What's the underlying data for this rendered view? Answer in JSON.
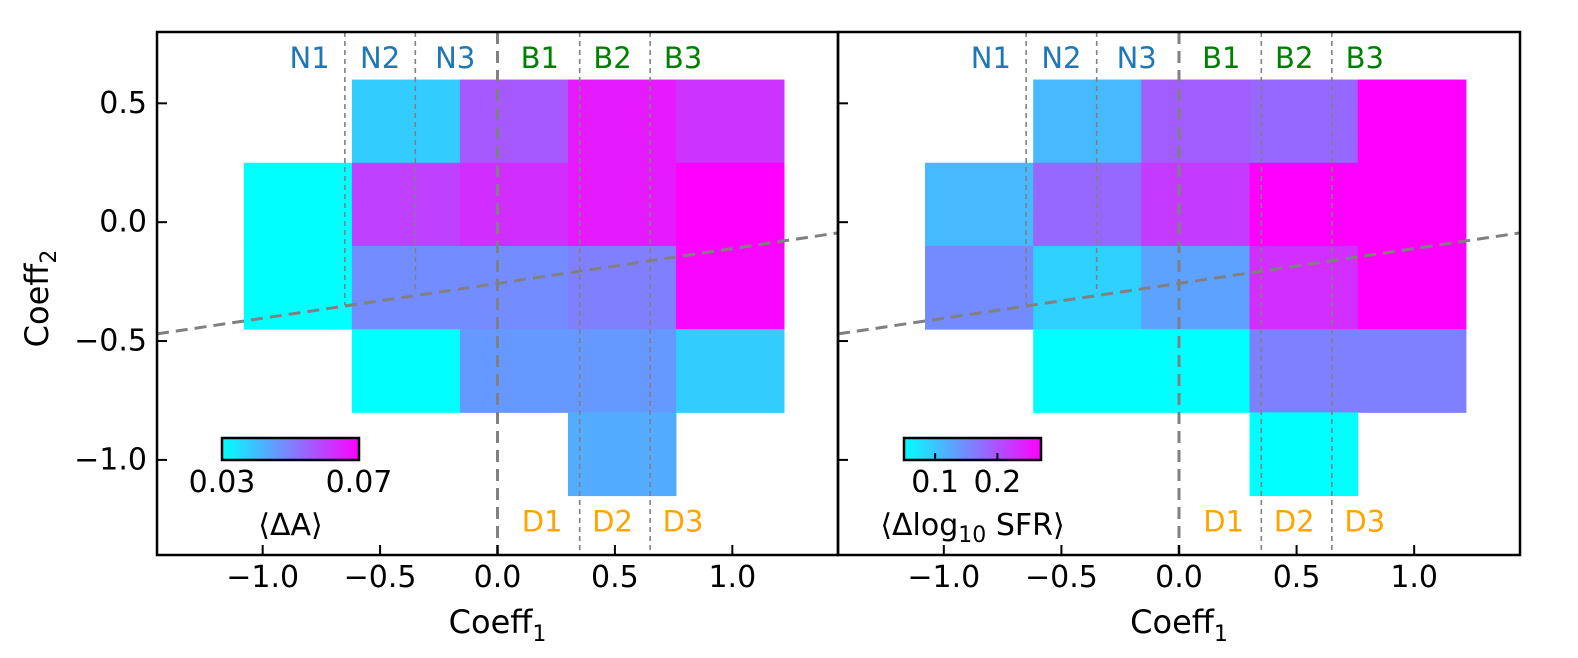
{
  "chart_data": [
    {
      "type": "heatmap",
      "panel": "left",
      "xlabel": "Coeff",
      "xlabel_sub": "1",
      "ylabel": "Coeff",
      "ylabel_sub": "2",
      "xlim": [
        -1.45,
        1.45
      ],
      "ylim": [
        -1.4,
        0.8
      ],
      "xticks": [
        -1.0,
        -0.5,
        0.0,
        0.5,
        1.0
      ],
      "xtick_labels": [
        "−1.0",
        "−0.5",
        "0.0",
        "0.5",
        "1.0"
      ],
      "yticks": [
        0.5,
        0.0,
        -0.5,
        -1.0
      ],
      "ytick_labels": [
        "0.5",
        "0.0",
        "−0.5",
        "−1.0"
      ],
      "colorbar": {
        "label": "⟨ΔA⟩",
        "range": [
          0.03,
          0.07
        ],
        "ticks": [
          0.03,
          0.07
        ],
        "tick_labels": [
          "0.03",
          "0.07"
        ],
        "colormap": "cool"
      },
      "cells": [
        {
          "x": [
            -0.62,
            -0.16
          ],
          "y": [
            0.25,
            0.6
          ],
          "value": 0.038
        },
        {
          "x": [
            -0.16,
            0.3
          ],
          "y": [
            0.25,
            0.6
          ],
          "value": 0.056
        },
        {
          "x": [
            0.3,
            0.76
          ],
          "y": [
            0.25,
            0.6
          ],
          "value": 0.066
        },
        {
          "x": [
            0.76,
            1.22
          ],
          "y": [
            0.25,
            0.6
          ],
          "value": 0.062
        },
        {
          "x": [
            -1.08,
            -0.62
          ],
          "y": [
            -0.1,
            0.25
          ],
          "value": 0.03
        },
        {
          "x": [
            -0.62,
            -0.16
          ],
          "y": [
            -0.1,
            0.25
          ],
          "value": 0.06
        },
        {
          "x": [
            -0.16,
            0.3
          ],
          "y": [
            -0.1,
            0.25
          ],
          "value": 0.063
        },
        {
          "x": [
            0.3,
            0.76
          ],
          "y": [
            -0.1,
            0.25
          ],
          "value": 0.066
        },
        {
          "x": [
            0.76,
            1.22
          ],
          "y": [
            -0.1,
            0.25
          ],
          "value": 0.07
        },
        {
          "x": [
            -1.08,
            -0.62
          ],
          "y": [
            -0.45,
            -0.1
          ],
          "value": 0.03
        },
        {
          "x": [
            -0.62,
            -0.16
          ],
          "y": [
            -0.45,
            -0.1
          ],
          "value": 0.048
        },
        {
          "x": [
            -0.16,
            0.3
          ],
          "y": [
            -0.45,
            -0.1
          ],
          "value": 0.048
        },
        {
          "x": [
            0.3,
            0.76
          ],
          "y": [
            -0.45,
            -0.1
          ],
          "value": 0.05
        },
        {
          "x": [
            0.76,
            1.22
          ],
          "y": [
            -0.45,
            -0.1
          ],
          "value": 0.069
        },
        {
          "x": [
            -0.62,
            -0.16
          ],
          "y": [
            -0.8,
            -0.45
          ],
          "value": 0.03
        },
        {
          "x": [
            -0.16,
            0.3
          ],
          "y": [
            -0.8,
            -0.45
          ],
          "value": 0.046
        },
        {
          "x": [
            0.3,
            0.76
          ],
          "y": [
            -0.8,
            -0.45
          ],
          "value": 0.046
        },
        {
          "x": [
            0.76,
            1.22
          ],
          "y": [
            -0.8,
            -0.45
          ],
          "value": 0.038
        },
        {
          "x": [
            0.3,
            0.76
          ],
          "y": [
            -1.15,
            -0.8
          ],
          "value": 0.043
        }
      ],
      "vertical_lines": [
        {
          "x": -0.65,
          "y_from": 0.8,
          "y_to": -0.35,
          "style": "thin"
        },
        {
          "x": -0.35,
          "y_from": 0.8,
          "y_to": -0.3,
          "style": "thin"
        },
        {
          "x": 0.0,
          "y_from": 0.8,
          "y_to": -1.4,
          "style": "thick"
        },
        {
          "x": 0.35,
          "y_from": 0.8,
          "y_to": -1.4,
          "style": "thin"
        },
        {
          "x": 0.65,
          "y_from": 0.8,
          "y_to": -1.4,
          "style": "thin"
        }
      ],
      "dashed_line": {
        "x": [
          -1.45,
          1.45
        ],
        "y": [
          -0.47,
          -0.045
        ]
      },
      "region_labels": [
        {
          "text": "N1",
          "x": -0.8,
          "y": 0.69,
          "group": "N"
        },
        {
          "text": "N2",
          "x": -0.5,
          "y": 0.69,
          "group": "N"
        },
        {
          "text": "N3",
          "x": -0.18,
          "y": 0.69,
          "group": "N"
        },
        {
          "text": "B1",
          "x": 0.18,
          "y": 0.69,
          "group": "B"
        },
        {
          "text": "B2",
          "x": 0.49,
          "y": 0.69,
          "group": "B"
        },
        {
          "text": "B3",
          "x": 0.79,
          "y": 0.69,
          "group": "B"
        },
        {
          "text": "D1",
          "x": 0.19,
          "y": -1.26,
          "group": "D"
        },
        {
          "text": "D2",
          "x": 0.49,
          "y": -1.26,
          "group": "D"
        },
        {
          "text": "D3",
          "x": 0.79,
          "y": -1.26,
          "group": "D"
        }
      ]
    },
    {
      "type": "heatmap",
      "panel": "right",
      "xlabel": "Coeff",
      "xlabel_sub": "1",
      "xlim": [
        -1.45,
        1.45
      ],
      "ylim": [
        -1.4,
        0.8
      ],
      "xticks": [
        -1.0,
        -0.5,
        0.0,
        0.5,
        1.0
      ],
      "xtick_labels": [
        "−1.0",
        "−0.5",
        "0.0",
        "0.5",
        "1.0"
      ],
      "yticks": [
        0.5,
        0.0,
        -0.5,
        -1.0
      ],
      "colorbar": {
        "label_parts": [
          "⟨Δlog",
          "10",
          " SFR⟩"
        ],
        "range": [
          0.05,
          0.27
        ],
        "ticks": [
          0.1,
          0.2
        ],
        "tick_labels": [
          "0.1",
          "0.2"
        ],
        "colormap": "cool"
      },
      "cells": [
        {
          "x": [
            -0.62,
            -0.16
          ],
          "y": [
            0.25,
            0.6
          ],
          "value": 0.11
        },
        {
          "x": [
            -0.16,
            0.3
          ],
          "y": [
            0.25,
            0.6
          ],
          "value": 0.19
        },
        {
          "x": [
            0.3,
            0.76
          ],
          "y": [
            0.25,
            0.6
          ],
          "value": 0.18
        },
        {
          "x": [
            0.76,
            1.22
          ],
          "y": [
            0.25,
            0.6
          ],
          "value": 0.27
        },
        {
          "x": [
            -1.08,
            -0.62
          ],
          "y": [
            -0.1,
            0.25
          ],
          "value": 0.11
        },
        {
          "x": [
            -0.62,
            -0.16
          ],
          "y": [
            -0.1,
            0.25
          ],
          "value": 0.18
        },
        {
          "x": [
            -0.16,
            0.3
          ],
          "y": [
            -0.1,
            0.25
          ],
          "value": 0.22
        },
        {
          "x": [
            0.3,
            0.76
          ],
          "y": [
            -0.1,
            0.25
          ],
          "value": 0.27
        },
        {
          "x": [
            0.76,
            1.22
          ],
          "y": [
            -0.1,
            0.25
          ],
          "value": 0.27
        },
        {
          "x": [
            -1.08,
            -0.62
          ],
          "y": [
            -0.45,
            -0.1
          ],
          "value": 0.15
        },
        {
          "x": [
            -0.62,
            -0.16
          ],
          "y": [
            -0.45,
            -0.1
          ],
          "value": 0.09
        },
        {
          "x": [
            -0.16,
            0.3
          ],
          "y": [
            -0.45,
            -0.1
          ],
          "value": 0.13
        },
        {
          "x": [
            0.3,
            0.76
          ],
          "y": [
            -0.45,
            -0.1
          ],
          "value": 0.23
        },
        {
          "x": [
            0.76,
            1.22
          ],
          "y": [
            -0.45,
            -0.1
          ],
          "value": 0.27
        },
        {
          "x": [
            -0.62,
            -0.16
          ],
          "y": [
            -0.8,
            -0.45
          ],
          "value": 0.05
        },
        {
          "x": [
            -0.16,
            0.3
          ],
          "y": [
            -0.8,
            -0.45
          ],
          "value": 0.05
        },
        {
          "x": [
            0.3,
            0.76
          ],
          "y": [
            -0.8,
            -0.45
          ],
          "value": 0.16
        },
        {
          "x": [
            0.76,
            1.22
          ],
          "y": [
            -0.8,
            -0.45
          ],
          "value": 0.16
        },
        {
          "x": [
            0.3,
            0.76
          ],
          "y": [
            -1.15,
            -0.8
          ],
          "value": 0.05
        }
      ],
      "vertical_lines": [
        {
          "x": -0.65,
          "y_from": 0.8,
          "y_to": -0.35,
          "style": "thin"
        },
        {
          "x": -0.35,
          "y_from": 0.8,
          "y_to": -0.3,
          "style": "thin"
        },
        {
          "x": 0.0,
          "y_from": 0.8,
          "y_to": -1.4,
          "style": "thick"
        },
        {
          "x": 0.35,
          "y_from": 0.8,
          "y_to": -1.4,
          "style": "thin"
        },
        {
          "x": 0.65,
          "y_from": 0.8,
          "y_to": -1.4,
          "style": "thin"
        }
      ],
      "dashed_line": {
        "x": [
          -1.45,
          1.45
        ],
        "y": [
          -0.47,
          -0.045
        ]
      },
      "region_labels": [
        {
          "text": "N1",
          "x": -0.8,
          "y": 0.69,
          "group": "N"
        },
        {
          "text": "N2",
          "x": -0.5,
          "y": 0.69,
          "group": "N"
        },
        {
          "text": "N3",
          "x": -0.18,
          "y": 0.69,
          "group": "N"
        },
        {
          "text": "B1",
          "x": 0.18,
          "y": 0.69,
          "group": "B"
        },
        {
          "text": "B2",
          "x": 0.49,
          "y": 0.69,
          "group": "B"
        },
        {
          "text": "B3",
          "x": 0.79,
          "y": 0.69,
          "group": "B"
        },
        {
          "text": "D1",
          "x": 0.19,
          "y": -1.26,
          "group": "D"
        },
        {
          "text": "D2",
          "x": 0.49,
          "y": -1.26,
          "group": "D"
        },
        {
          "text": "D3",
          "x": 0.79,
          "y": -1.26,
          "group": "D"
        }
      ]
    }
  ],
  "colors": {
    "N": "#1f77b4",
    "B": "#008000",
    "D": "#ffa500",
    "guide_line": "#808080",
    "colormap_low": "#00ffff",
    "colormap_high": "#ff00ff"
  }
}
